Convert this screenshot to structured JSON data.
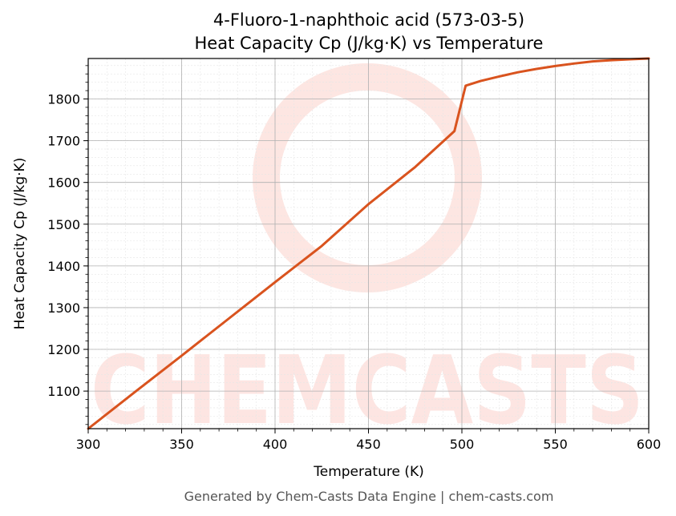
{
  "chart_data": {
    "type": "line",
    "title": "4-Fluoro-1-naphthoic acid (573-03-5)",
    "subtitle": "Heat Capacity Cp (J/kg·K) vs Temperature",
    "xlabel": "Temperature (K)",
    "ylabel": "Heat Capacity Cp (J/kg·K)",
    "xlim": [
      300,
      600
    ],
    "ylim": [
      1010,
      1897
    ],
    "xticks": [
      300,
      350,
      400,
      450,
      500,
      550,
      600
    ],
    "yticks": [
      1100,
      1200,
      1300,
      1400,
      1500,
      1600,
      1700,
      1800
    ],
    "grid": true,
    "minor_grid": true,
    "series": [
      {
        "x": [
          300,
          325,
          350,
          375,
          400,
          425,
          450,
          475,
          496,
          502,
          510,
          520,
          530,
          540,
          550,
          560,
          570,
          580,
          590,
          600
        ],
        "y": [
          1010,
          1098,
          1185,
          1273,
          1361,
          1448,
          1548,
          1637,
          1723,
          1832,
          1843,
          1854,
          1864,
          1872,
          1879,
          1885,
          1890,
          1893,
          1895,
          1897
        ]
      }
    ],
    "line_color": "#d9531e"
  },
  "watermark": {
    "text": "CHEMCASTS",
    "color": "#fde3df"
  },
  "footer": "Generated by Chem-Casts Data Engine | chem-casts.com"
}
